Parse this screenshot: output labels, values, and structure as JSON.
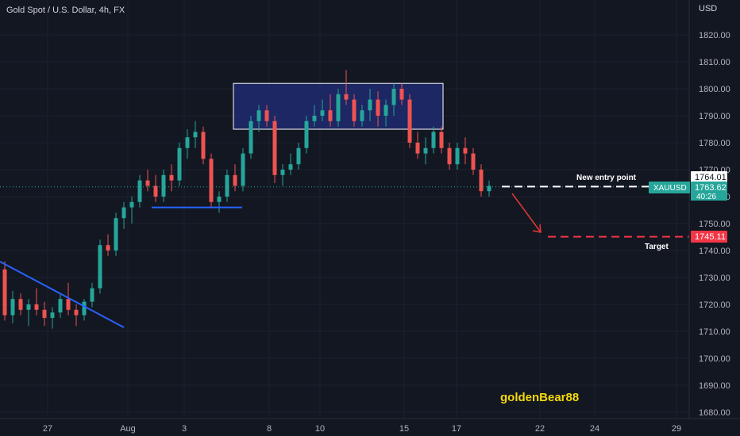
{
  "header": {
    "symbol_title": "Gold Spot / U.S. Dollar, 4h, FX"
  },
  "price_axis": {
    "currency": "USD",
    "ticks": [
      "1820.00",
      "1810.00",
      "1800.00",
      "1790.00",
      "1780.00",
      "1770.00",
      "1760.00",
      "1750.00",
      "1740.00",
      "1730.00",
      "1720.00",
      "1710.00",
      "1700.00",
      "1690.00",
      "1680.00"
    ]
  },
  "time_axis": {
    "ticks": [
      "27",
      "Aug",
      "3",
      "8",
      "10",
      "15",
      "17",
      "22",
      "24",
      "29"
    ]
  },
  "labels": {
    "entry_price": "1764.01",
    "symbol_tag": "XAUUSD",
    "last_price": "1763.62",
    "countdown": "40:26",
    "target_price": "1745.11",
    "entry_annotation": "New entry point",
    "target_annotation": "Target",
    "watermark": "goldenBear88"
  },
  "colors": {
    "background": "#131722",
    "up_candle": "#26a69a",
    "down_candle": "#ef5350",
    "trend_line": "#2962ff",
    "box_fill": "#1e2a6e",
    "target_red": "#f23645",
    "watermark_yellow": "#f5d90a",
    "arrow_red": "#e53935"
  },
  "chart_data": {
    "type": "candlestick",
    "title": "Gold Spot / U.S. Dollar, 4h, FX",
    "ylabel": "USD",
    "ylim": [
      1676,
      1830
    ],
    "x_ticks": [
      "27",
      "Aug",
      "3",
      "8",
      "10",
      "15",
      "17",
      "22",
      "24",
      "29"
    ],
    "last_price": 1763.62,
    "entry_level": 1764.01,
    "target_level": 1745.11,
    "ohlc": [
      [
        1733,
        1736,
        1714,
        1716
      ],
      [
        1716,
        1725,
        1713,
        1722
      ],
      [
        1722,
        1724,
        1716,
        1718
      ],
      [
        1718,
        1722,
        1712,
        1720
      ],
      [
        1720,
        1726,
        1716,
        1718
      ],
      [
        1718,
        1721,
        1712,
        1715
      ],
      [
        1715,
        1719,
        1711,
        1717
      ],
      [
        1717,
        1724,
        1715,
        1722
      ],
      [
        1722,
        1728,
        1716,
        1718
      ],
      [
        1718,
        1720,
        1712,
        1716
      ],
      [
        1716,
        1722,
        1714,
        1721
      ],
      [
        1721,
        1728,
        1719,
        1726
      ],
      [
        1726,
        1744,
        1724,
        1742
      ],
      [
        1742,
        1746,
        1738,
        1740
      ],
      [
        1740,
        1754,
        1738,
        1752
      ],
      [
        1752,
        1758,
        1748,
        1756
      ],
      [
        1756,
        1760,
        1750,
        1758
      ],
      [
        1758,
        1768,
        1756,
        1766
      ],
      [
        1766,
        1770,
        1762,
        1764
      ],
      [
        1764,
        1768,
        1758,
        1760
      ],
      [
        1760,
        1770,
        1758,
        1768
      ],
      [
        1768,
        1772,
        1762,
        1766
      ],
      [
        1766,
        1780,
        1764,
        1778
      ],
      [
        1778,
        1785,
        1774,
        1782
      ],
      [
        1782,
        1788,
        1778,
        1784
      ],
      [
        1784,
        1786,
        1772,
        1774
      ],
      [
        1774,
        1776,
        1756,
        1758
      ],
      [
        1758,
        1762,
        1754,
        1760
      ],
      [
        1760,
        1770,
        1758,
        1768
      ],
      [
        1768,
        1772,
        1762,
        1764
      ],
      [
        1764,
        1778,
        1762,
        1776
      ],
      [
        1776,
        1790,
        1774,
        1788
      ],
      [
        1788,
        1794,
        1784,
        1792
      ],
      [
        1792,
        1794,
        1786,
        1788
      ],
      [
        1788,
        1790,
        1765,
        1768
      ],
      [
        1768,
        1772,
        1764,
        1770
      ],
      [
        1770,
        1776,
        1768,
        1772
      ],
      [
        1772,
        1780,
        1770,
        1778
      ],
      [
        1778,
        1790,
        1776,
        1788
      ],
      [
        1788,
        1794,
        1786,
        1790
      ],
      [
        1790,
        1796,
        1788,
        1792
      ],
      [
        1792,
        1798,
        1786,
        1788
      ],
      [
        1788,
        1800,
        1786,
        1798
      ],
      [
        1798,
        1807,
        1794,
        1796
      ],
      [
        1796,
        1798,
        1786,
        1788
      ],
      [
        1788,
        1794,
        1786,
        1792
      ],
      [
        1792,
        1800,
        1788,
        1796
      ],
      [
        1796,
        1799,
        1786,
        1790
      ],
      [
        1790,
        1796,
        1786,
        1794
      ],
      [
        1794,
        1802,
        1790,
        1800
      ],
      [
        1800,
        1802,
        1794,
        1796
      ],
      [
        1796,
        1798,
        1778,
        1780
      ],
      [
        1780,
        1784,
        1774,
        1776
      ],
      [
        1776,
        1782,
        1772,
        1778
      ],
      [
        1778,
        1786,
        1776,
        1784
      ],
      [
        1784,
        1786,
        1776,
        1778
      ],
      [
        1778,
        1780,
        1770,
        1772
      ],
      [
        1772,
        1780,
        1770,
        1778
      ],
      [
        1778,
        1782,
        1772,
        1776
      ],
      [
        1776,
        1778,
        1768,
        1770
      ],
      [
        1770,
        1772,
        1760,
        1762
      ],
      [
        1762,
        1766,
        1760,
        1764
      ]
    ],
    "annotations": [
      {
        "type": "trendline",
        "from": [
          0,
          1732
        ],
        "to": [
          26,
          1712
        ]
      },
      {
        "type": "support_line",
        "price": 1756
      },
      {
        "type": "consolidation_box",
        "top": 1802,
        "bottom": 1785
      },
      {
        "type": "projection_arrow",
        "from": 1764,
        "to": 1745
      }
    ]
  }
}
